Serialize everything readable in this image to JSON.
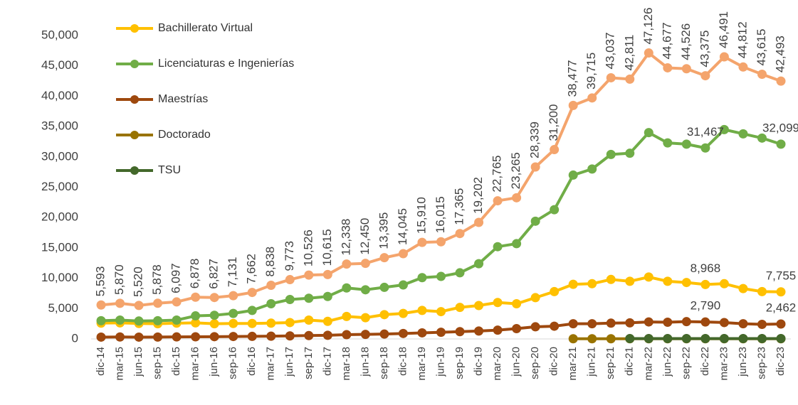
{
  "chart_data": {
    "type": "line",
    "categories": [
      "dic-14",
      "mar-15",
      "jun-15",
      "sep-15",
      "dic-15",
      "mar-16",
      "jun-16",
      "sep-16",
      "dic-16",
      "mar-17",
      "jun-17",
      "sep-17",
      "dic-17",
      "mar-18",
      "jun-18",
      "sep-18",
      "dic-18",
      "mar-19",
      "jun-19",
      "sep-19",
      "dic-19",
      "mar-20",
      "jun-20",
      "sep-20",
      "dic-20",
      "mar-21",
      "jun-21",
      "sep-21",
      "dic-21",
      "mar-22",
      "jun-22",
      "sep-22",
      "dic-22",
      "mar-23",
      "jun-23",
      "sep-23",
      "dic-23"
    ],
    "ylim": [
      0,
      50000
    ],
    "yticks": [
      0,
      {
        "value": 5000,
        "label": "5,000"
      },
      {
        "value": 10000,
        "label": "10,000"
      },
      {
        "value": 15000,
        "label": "15,000"
      },
      {
        "value": 20000,
        "label": "20,000"
      },
      {
        "value": 25000,
        "label": "25,000"
      },
      {
        "value": 30000,
        "label": "30,000"
      },
      {
        "value": 35000,
        "label": "35,000"
      },
      {
        "value": 40000,
        "label": "40,000"
      },
      {
        "value": 45000,
        "label": "45,000"
      },
      {
        "value": 50000,
        "label": "50,000"
      }
    ],
    "grid": false,
    "legend": "top-left",
    "series": [
      {
        "color": "#f4a46c",
        "values": [
          5593,
          5870,
          5520,
          5878,
          6097,
          6878,
          6827,
          7131,
          7662,
          8838,
          9773,
          10526,
          10615,
          12338,
          12450,
          13395,
          14045,
          15910,
          16015,
          17365,
          19202,
          22765,
          23265,
          28339,
          31200,
          38477,
          39715,
          43037,
          42811,
          47126,
          44677,
          44526,
          43375,
          46491,
          44812,
          43615,
          42493
        ],
        "value_labels": [
          "5,593",
          "5,870",
          "5,520",
          "5,878",
          "6,097",
          "6,878",
          "6,827",
          "7,131",
          "7,662",
          "8,838",
          "9,773",
          "10,526",
          "10,615",
          "12,338",
          "12,450",
          "13,395",
          "14,045",
          "15,910",
          "16,015",
          "17,365",
          "19,202",
          "22,765",
          "23,265",
          "28,339",
          "31,200",
          "38,477",
          "39,715",
          "43,037",
          "42,811",
          "47,126",
          "44,677",
          "44,526",
          "43,375",
          "46,491",
          "44,812",
          "43,615",
          "42,493"
        ]
      },
      {
        "name": "Bachillerato Virtual",
        "color": "#ffc000",
        "values": [
          2600,
          2650,
          2550,
          2500,
          2600,
          2650,
          2500,
          2550,
          2550,
          2600,
          2700,
          3100,
          2900,
          3700,
          3500,
          4000,
          4200,
          4700,
          4500,
          5200,
          5500,
          6000,
          5800,
          6800,
          7800,
          9000,
          9100,
          9800,
          9500,
          10200,
          9500,
          9300,
          8968,
          9100,
          8300,
          7800,
          7755
        ],
        "value_labels": [
          null,
          null,
          null,
          null,
          null,
          null,
          null,
          null,
          null,
          null,
          null,
          null,
          null,
          null,
          null,
          null,
          null,
          null,
          null,
          null,
          null,
          null,
          null,
          null,
          null,
          null,
          null,
          null,
          null,
          null,
          null,
          null,
          "8,968",
          null,
          null,
          null,
          "7,755"
        ]
      },
      {
        "name": "Licenciaturas e Ingenierías",
        "color": "#70ad47",
        "values": [
          3000,
          3100,
          2950,
          3000,
          3100,
          3800,
          3900,
          4200,
          4700,
          5800,
          6500,
          6700,
          7000,
          8400,
          8100,
          8500,
          8900,
          10100,
          10300,
          10900,
          12400,
          15200,
          15700,
          19400,
          21300,
          27000,
          28000,
          30400,
          30600,
          34000,
          32300,
          32100,
          31467,
          34500,
          33800,
          33100,
          32099
        ],
        "value_labels": [
          null,
          null,
          null,
          null,
          null,
          null,
          null,
          null,
          null,
          null,
          null,
          null,
          null,
          null,
          null,
          null,
          null,
          null,
          null,
          null,
          null,
          null,
          null,
          null,
          null,
          null,
          null,
          null,
          null,
          null,
          null,
          null,
          "31,467",
          null,
          null,
          null,
          "32,099"
        ]
      },
      {
        "name": "Maestrías",
        "color": "#9e480e",
        "values": [
          300,
          320,
          300,
          310,
          330,
          350,
          370,
          400,
          420,
          450,
          500,
          550,
          600,
          700,
          750,
          800,
          900,
          1000,
          1100,
          1200,
          1300,
          1450,
          1700,
          2000,
          2100,
          2500,
          2500,
          2600,
          2650,
          2800,
          2750,
          2850,
          2790,
          2700,
          2500,
          2400,
          2462
        ],
        "value_labels": [
          null,
          null,
          null,
          null,
          null,
          null,
          null,
          null,
          null,
          null,
          null,
          null,
          null,
          null,
          null,
          null,
          null,
          null,
          null,
          null,
          null,
          null,
          null,
          null,
          null,
          null,
          null,
          null,
          null,
          null,
          null,
          null,
          "2,790",
          null,
          null,
          null,
          "2,462"
        ]
      },
      {
        "name": "Doctorado",
        "color": "#997300",
        "values": [
          null,
          null,
          null,
          null,
          null,
          null,
          null,
          null,
          null,
          null,
          null,
          null,
          null,
          null,
          null,
          null,
          null,
          null,
          null,
          null,
          null,
          null,
          null,
          null,
          null,
          30,
          30,
          30,
          30,
          30,
          30,
          30,
          30,
          30,
          30,
          30,
          30
        ]
      },
      {
        "name": "TSU",
        "color": "#43682b",
        "values": [
          null,
          null,
          null,
          null,
          null,
          null,
          null,
          null,
          null,
          null,
          null,
          null,
          null,
          null,
          null,
          null,
          null,
          null,
          null,
          null,
          null,
          null,
          null,
          null,
          null,
          null,
          null,
          null,
          60,
          60,
          60,
          60,
          60,
          60,
          60,
          60,
          60
        ]
      }
    ]
  }
}
